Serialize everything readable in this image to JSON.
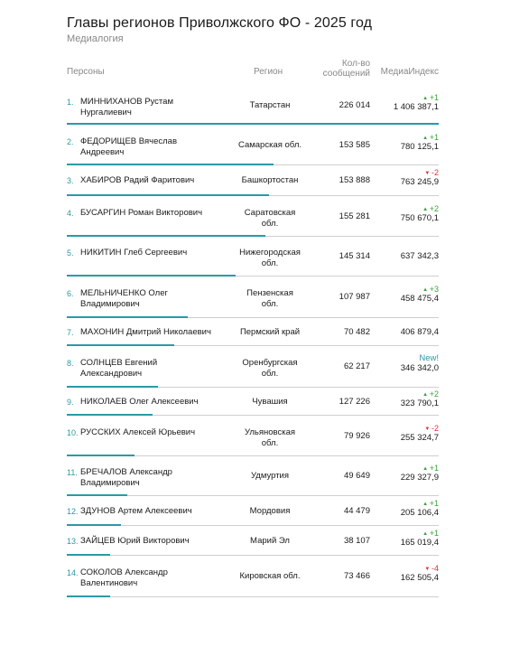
{
  "title": "Главы регионов Приволжского ФО - 2025 год",
  "subtitle": "Медиалогия",
  "columns": {
    "persons": "Персоны",
    "region": "Регион",
    "count_line1": "Кол-во",
    "count_line2": "сообщений",
    "index": "МедиаИндекс"
  },
  "colors": {
    "accent": "#2a9aa6",
    "up": "#3aa23a",
    "down": "#e03030"
  },
  "rows": [
    {
      "num": "1.",
      "name1": "МИННИХАНОВ Рустам",
      "name2": "Нургалиевич",
      "region1": "Татарстан",
      "region2": "",
      "count": "226 014",
      "index": "1 406 387,1",
      "delta": "+1",
      "trend": "up",
      "index_value": 1406387.1
    },
    {
      "num": "2.",
      "name1": "ФЕДОРИЩЕВ Вячеслав",
      "name2": "Андреевич",
      "region1": "Самарская обл.",
      "region2": "",
      "count": "153 585",
      "index": "780 125,1",
      "delta": "+1",
      "trend": "up",
      "index_value": 780125.1
    },
    {
      "num": "3.",
      "name1": "ХАБИРОВ Радий Фаритович",
      "name2": "",
      "region1": "Башкортостан",
      "region2": "",
      "count": "153 888",
      "index": "763 245,9",
      "delta": "-2",
      "trend": "down",
      "index_value": 763245.9
    },
    {
      "num": "4.",
      "name1": "БУСАРГИН Роман Викторович",
      "name2": "",
      "region1": "Саратовская",
      "region2": "обл.",
      "count": "155 281",
      "index": "750 670,1",
      "delta": "+2",
      "trend": "up",
      "index_value": 750670.1
    },
    {
      "num": "5.",
      "name1": "НИКИТИН Глеб Сергеевич",
      "name2": "",
      "region1": "Нижегородская",
      "region2": "обл.",
      "count": "145 314",
      "index": "637 342,3",
      "delta": "",
      "trend": "none",
      "index_value": 637342.3
    },
    {
      "num": "6.",
      "name1": "МЕЛЬНИЧЕНКО Олег",
      "name2": "Владимирович",
      "region1": "Пензенская",
      "region2": "обл.",
      "count": "107 987",
      "index": "458 475,4",
      "delta": "+3",
      "trend": "up",
      "index_value": 458475.4
    },
    {
      "num": "7.",
      "name1": "МАХОНИН Дмитрий Николаевич",
      "name2": "",
      "region1": "Пермский край",
      "region2": "",
      "count": "70 482",
      "index": "406 879,4",
      "delta": "",
      "trend": "none",
      "index_value": 406879.4
    },
    {
      "num": "8.",
      "name1": "СОЛНЦЕВ Евгений",
      "name2": "Александрович",
      "region1": "Оренбургская",
      "region2": "обл.",
      "count": "62 217",
      "index": "346 342,0",
      "delta": "New!",
      "trend": "new",
      "index_value": 346342.0
    },
    {
      "num": "9.",
      "name1": "НИКОЛАЕВ Олег Алексеевич",
      "name2": "",
      "region1": "Чувашия",
      "region2": "",
      "count": "127 226",
      "index": "323 790,1",
      "delta": "+2",
      "trend": "up",
      "index_value": 323790.1
    },
    {
      "num": "10.",
      "name1": "РУССКИХ Алексей Юрьевич",
      "name2": "",
      "region1": "Ульяновская",
      "region2": "обл.",
      "count": "79 926",
      "index": "255 324,7",
      "delta": "-2",
      "trend": "down",
      "index_value": 255324.7
    },
    {
      "num": "11.",
      "name1": "БРЕЧАЛОВ Александр",
      "name2": "Владимирович",
      "region1": "Удмуртия",
      "region2": "",
      "count": "49 649",
      "index": "229 327,9",
      "delta": "+1",
      "trend": "up",
      "index_value": 229327.9
    },
    {
      "num": "12.",
      "name1": "ЗДУНОВ Артем Алексеевич",
      "name2": "",
      "region1": "Мордовия",
      "region2": "",
      "count": "44 479",
      "index": "205 106,4",
      "delta": "+1",
      "trend": "up",
      "index_value": 205106.4
    },
    {
      "num": "13.",
      "name1": "ЗАЙЦЕВ Юрий Викторович",
      "name2": "",
      "region1": "Марий Эл",
      "region2": "",
      "count": "38 107",
      "index": "165 019,4",
      "delta": "+1",
      "trend": "up",
      "index_value": 165019.4
    },
    {
      "num": "14.",
      "name1": "СОКОЛОВ Александр",
      "name2": "Валентинович",
      "region1": "Кировская обл.",
      "region2": "",
      "count": "73 466",
      "index": "162 505,4",
      "delta": "-4",
      "trend": "down",
      "index_value": 162505.4
    }
  ]
}
